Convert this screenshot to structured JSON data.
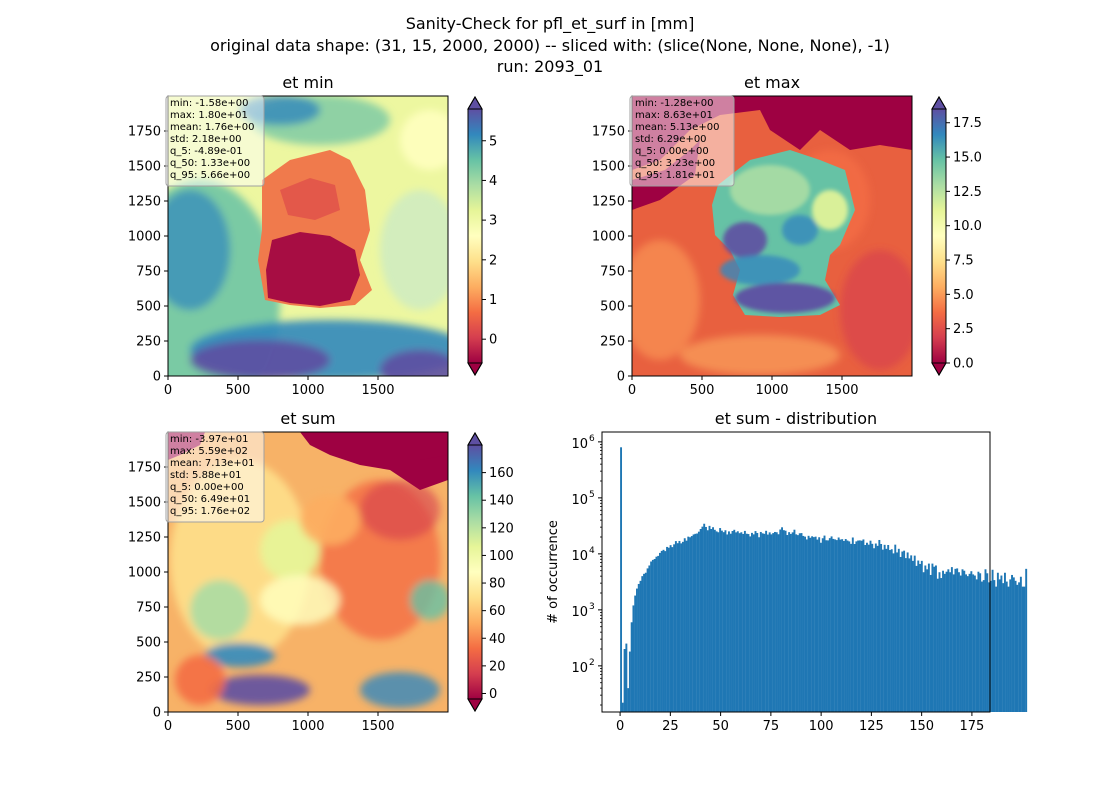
{
  "figure": {
    "suptitle_lines": [
      "Sanity-Check for pfl_et_surf in [mm]",
      "original data shape: (31, 15, 2000, 2000) -- sliced with: (slice(None, None, None), -1)",
      "run: 2093_01"
    ]
  },
  "colors": {
    "spectral_stops": [
      "#9e0142",
      "#d53e4f",
      "#f46d43",
      "#fdae61",
      "#fee08b",
      "#ffffbf",
      "#e6f598",
      "#abdda4",
      "#66c2a5",
      "#3288bd",
      "#5e4fa2"
    ],
    "hist_bar": "#1f77b4",
    "statbox_bg": "#f0b9c8",
    "statbox_edge": "#a0a0a0",
    "map_low_fill": "#9e0142"
  },
  "panels": [
    {
      "id": "et_min",
      "title": "et min",
      "x_ticks": [
        "0",
        "500",
        "1000",
        "1500"
      ],
      "y_ticks": [
        "0",
        "250",
        "500",
        "750",
        "1000",
        "1250",
        "1500",
        "1750"
      ],
      "colorbar": {
        "vmin": -0.6,
        "vmax": 5.8,
        "ticks": [
          "0",
          "1",
          "2",
          "3",
          "4",
          "5"
        ],
        "tick_values": [
          0,
          1,
          2,
          3,
          4,
          5
        ],
        "extend": "both"
      },
      "stats": [
        "min: -1.58e+00",
        "max: 1.80e+01",
        "mean: 1.76e+00",
        "std: 2.18e+00",
        "q_5: -4.89e-01",
        "q_50: 1.33e+00",
        "q_95: 5.66e+00"
      ]
    },
    {
      "id": "et_max",
      "title": "et max",
      "x_ticks": [
        "0",
        "500",
        "1000",
        "1500"
      ],
      "y_ticks": [
        "0",
        "250",
        "500",
        "750",
        "1000",
        "1250",
        "1500",
        "1750"
      ],
      "colorbar": {
        "vmin": 0.0,
        "vmax": 18.5,
        "ticks": [
          "0.0",
          "2.5",
          "5.0",
          "7.5",
          "10.0",
          "12.5",
          "15.0",
          "17.5"
        ],
        "tick_values": [
          0,
          2.5,
          5,
          7.5,
          10,
          12.5,
          15,
          17.5
        ],
        "extend": "both"
      },
      "stats": [
        "min: -1.28e+00",
        "max: 8.63e+01",
        "mean: 5.13e+00",
        "std: 6.29e+00",
        "q_5: 0.00e+00",
        "q_50: 3.23e+00",
        "q_95: 1.81e+01"
      ]
    },
    {
      "id": "et_sum",
      "title": "et sum",
      "x_ticks": [
        "0",
        "500",
        "1000",
        "1500"
      ],
      "y_ticks": [
        "0",
        "250",
        "500",
        "750",
        "1000",
        "1250",
        "1500",
        "1750"
      ],
      "colorbar": {
        "vmin": -4,
        "vmax": 180,
        "ticks": [
          "0",
          "20",
          "40",
          "60",
          "80",
          "100",
          "120",
          "140",
          "160"
        ],
        "tick_values": [
          0,
          20,
          40,
          60,
          80,
          100,
          120,
          140,
          160
        ],
        "extend": "both"
      },
      "stats": [
        "min: -3.97e+01",
        "max: 5.59e+02",
        "mean: 7.13e+01",
        "std: 5.88e+01",
        "q_5: 0.00e+00",
        "q_50: 6.49e+01",
        "q_95: 1.76e+02"
      ]
    }
  ],
  "chart_data": {
    "type": "bar",
    "title": "et sum - distribution",
    "xlabel": "",
    "ylabel": "# of occurrence",
    "yscale": "log",
    "xlim": [
      -9,
      184
    ],
    "ylim": [
      15,
      1500000
    ],
    "x_ticks": [
      0,
      25,
      50,
      75,
      100,
      125,
      150,
      175
    ],
    "y_ticks": [
      {
        "value": 100,
        "label": "10",
        "exp": "2"
      },
      {
        "value": 1000,
        "label": "10",
        "exp": "3"
      },
      {
        "value": 10000,
        "label": "10",
        "exp": "4"
      },
      {
        "value": 100000,
        "label": "10",
        "exp": "5"
      },
      {
        "value": 1000000,
        "label": "10",
        "exp": "6"
      }
    ],
    "bin_start": 0,
    "bin_width": 0.88,
    "values": [
      800000,
      22,
      200,
      250,
      40,
      180,
      600,
      1200,
      1800,
      2400,
      2900,
      3300,
      4000,
      4400,
      4600,
      5500,
      6200,
      7300,
      7800,
      8100,
      8900,
      9200,
      10400,
      11300,
      11800,
      11200,
      13300,
      12900,
      14300,
      13200,
      14800,
      16900,
      15500,
      17000,
      15400,
      16400,
      19000,
      17200,
      20300,
      19800,
      20800,
      22200,
      22800,
      23100,
      24900,
      27800,
      30600,
      34500,
      30200,
      26400,
      31600,
      27800,
      29900,
      26900,
      25200,
      24300,
      28900,
      26000,
      24400,
      26400,
      22200,
      25200,
      22900,
      25600,
      26900,
      24200,
      25300,
      23400,
      24300,
      22700,
      25700,
      22900,
      22600,
      20500,
      23700,
      22300,
      25500,
      23600,
      19800,
      24600,
      23300,
      22800,
      25800,
      22100,
      24200,
      22300,
      23500,
      24600,
      24300,
      22400,
      27200,
      29800,
      26500,
      25900,
      21700,
      24400,
      22700,
      24200,
      27000,
      22300,
      21600,
      23300,
      23500,
      20900,
      20300,
      18100,
      21000,
      19400,
      20600,
      19900,
      20300,
      18000,
      19800,
      15800,
      19000,
      21200,
      17500,
      17400,
      19100,
      20500,
      18500,
      18100,
      17600,
      19600,
      18000,
      18300,
      17000,
      18400,
      17300,
      16700,
      15100,
      19600,
      15000,
      16700,
      17300,
      17400,
      17200,
      18100,
      14400,
      15800,
      14600,
      17200,
      15100,
      12600,
      15300,
      13900,
      17700,
      15000,
      11900,
      14500,
      12300,
      14400,
      11700,
      12100,
      10200,
      14600,
      10600,
      12300,
      8800,
      11000,
      11400,
      8400,
      10600,
      8300,
      9400,
      7500,
      9300,
      6100,
      7600,
      6600,
      7500,
      4700,
      6200,
      5300,
      6700,
      4200,
      6700,
      5900,
      6200,
      3600,
      4700,
      3700,
      5000,
      4400,
      4800,
      5300,
      4700,
      5800,
      4300,
      5400,
      5500,
      4700,
      4100,
      5300,
      5000,
      4300,
      4000,
      4400,
      4900,
      4300,
      4100,
      3500,
      4800,
      4500,
      3200,
      3400,
      5300,
      4500,
      3100,
      3300,
      5200,
      3400,
      2600,
      4600,
      3500,
      4100,
      3000,
      4600,
      3200,
      2600,
      3500,
      4200,
      3800,
      3300,
      2800,
      3100,
      3900,
      2600,
      2600,
      5400
    ]
  }
}
